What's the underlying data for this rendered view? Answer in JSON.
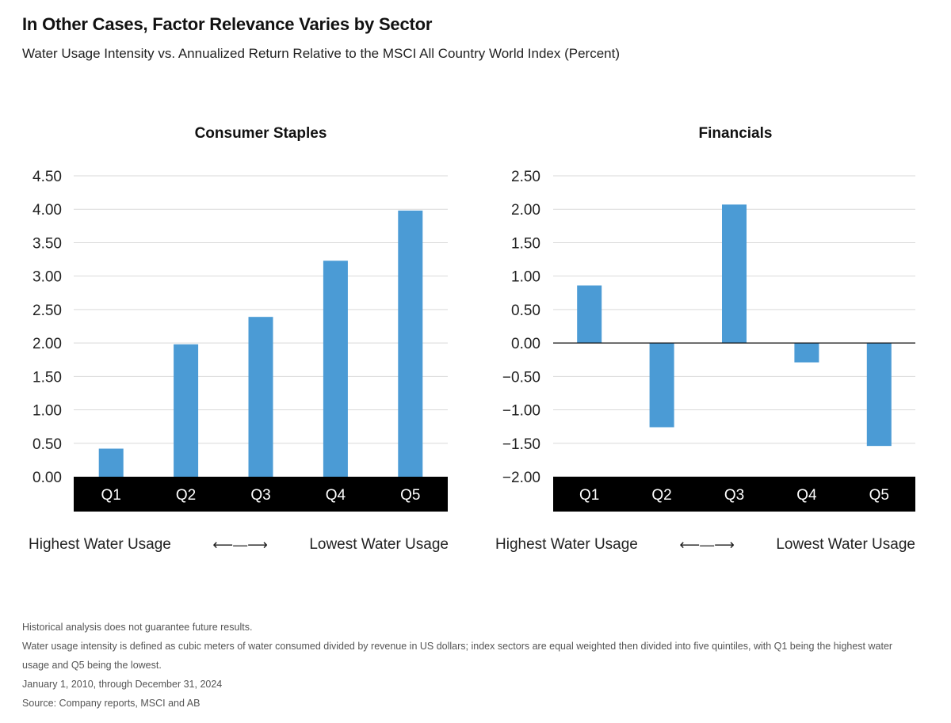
{
  "header": {
    "title": "In Other Cases, Factor Relevance Varies by Sector",
    "subtitle": "Water Usage Intensity vs. Annualized Return Relative to the MSCI All Country World Index (Percent)"
  },
  "colors": {
    "bar": "#4b9bd5",
    "axis_band": "#000000",
    "grid": "#d9d9d9"
  },
  "chart_data": [
    {
      "type": "bar",
      "title": "Consumer Staples",
      "categories": [
        "Q1",
        "Q2",
        "Q3",
        "Q4",
        "Q5"
      ],
      "values": [
        0.42,
        1.98,
        2.39,
        3.23,
        3.98
      ],
      "ylim": [
        0,
        4.5
      ],
      "yticks": [
        4.5,
        4.0,
        3.5,
        3.0,
        2.5,
        2.0,
        1.5,
        1.0,
        0.5,
        0.0
      ],
      "ytick_labels": [
        "4.50",
        "4.00",
        "3.50",
        "3.00",
        "2.50",
        "2.00",
        "1.50",
        "1.00",
        "0.50",
        "0.00"
      ],
      "xlabel_left": "Highest Water Usage",
      "xlabel_right": "Lowest Water Usage",
      "grid": true
    },
    {
      "type": "bar",
      "title": "Financials",
      "categories": [
        "Q1",
        "Q2",
        "Q3",
        "Q4",
        "Q5"
      ],
      "values": [
        0.86,
        -1.26,
        2.07,
        -0.29,
        -1.54
      ],
      "ylim": [
        -2.0,
        2.5
      ],
      "yticks": [
        2.5,
        2.0,
        1.5,
        1.0,
        0.5,
        0.0,
        -0.5,
        -1.0,
        -1.5,
        -2.0
      ],
      "ytick_labels": [
        "2.50",
        "2.00",
        "1.50",
        "1.00",
        "0.50",
        "0.00",
        "−0.50",
        "−1.00",
        "−1.50",
        "−2.00"
      ],
      "xlabel_left": "Highest Water Usage",
      "xlabel_right": "Lowest Water Usage",
      "grid": true
    }
  ],
  "arrow_glyph": "⟵—⟶",
  "notes": [
    "Historical analysis does not guarantee future results.",
    "Water usage intensity is defined as cubic meters of water consumed divided by revenue in US dollars; index sectors are equal weighted then divided into five quintiles, with Q1 being the highest water",
    "usage and Q5 being the lowest.",
    "January 1, 2010, through December 31, 2024",
    "Source: Company reports, MSCI and AB"
  ]
}
